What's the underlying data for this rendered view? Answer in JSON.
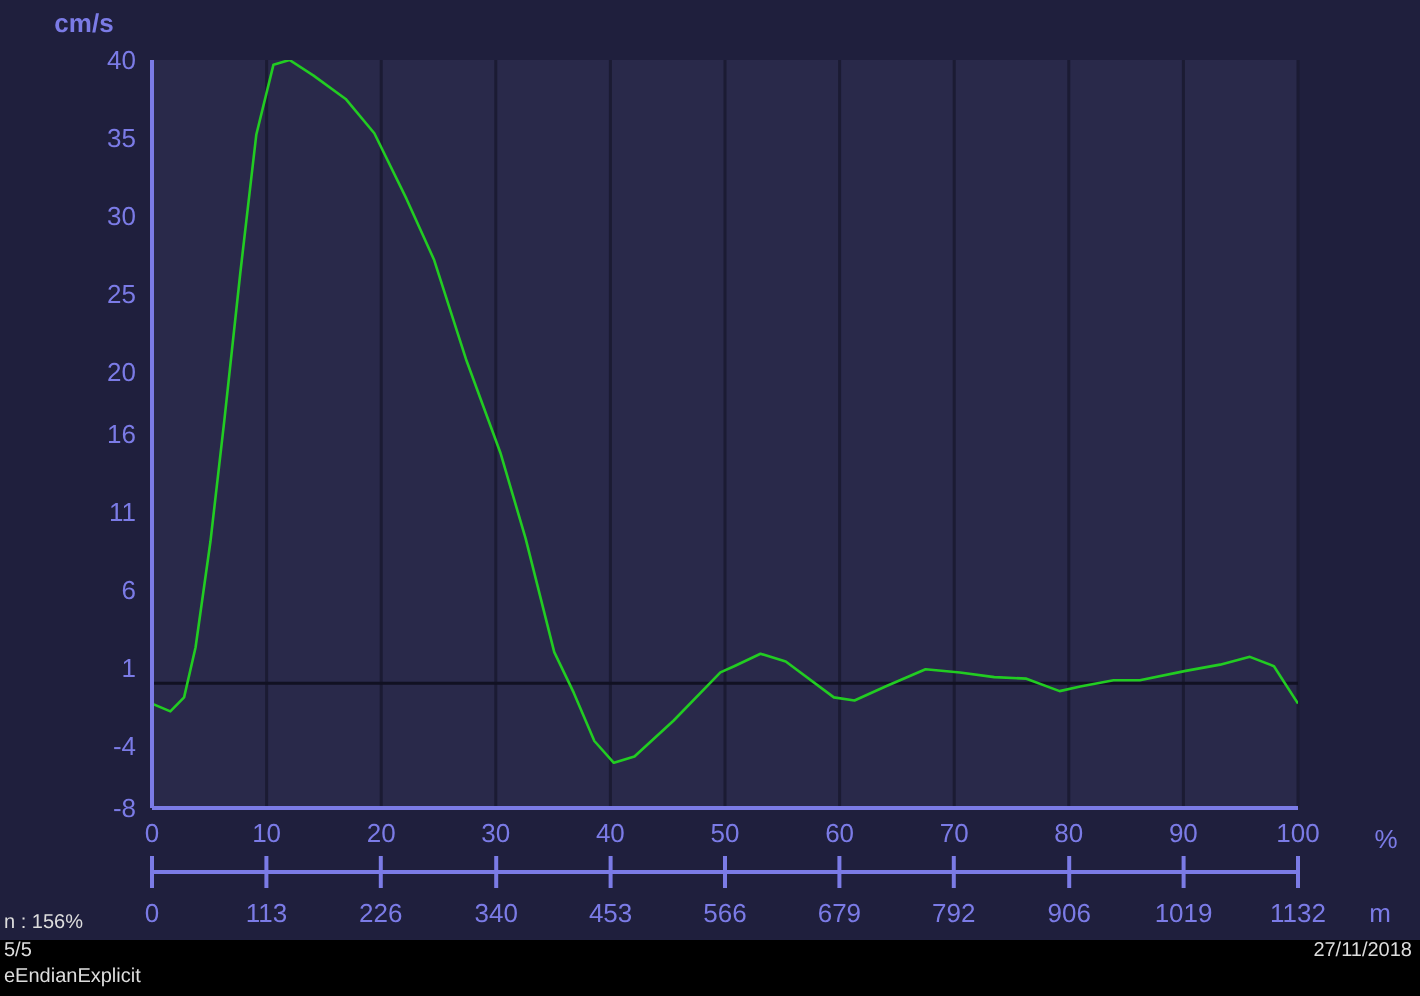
{
  "chart_data": {
    "type": "line",
    "ylabel": "cm/s",
    "xlabel": "%",
    "x2label": "m",
    "x": [
      0,
      1.6,
      2.8,
      3.8,
      5.1,
      6.3,
      7.7,
      9.1,
      10.6,
      12.0,
      14.1,
      16.9,
      19.4,
      22.2,
      24.6,
      27.4,
      30.4,
      32.6,
      35.1,
      36.8,
      38.6,
      40.3,
      42.1,
      45.5,
      49.6,
      50.8,
      53.1,
      55.3,
      59.5,
      61.3,
      64.0,
      67.5,
      70.5,
      73.5,
      76.3,
      79.2,
      81.0,
      83.9,
      86.2,
      90.2,
      93.2,
      95.8,
      97.9,
      100
    ],
    "series": [
      {
        "color": "#22cc22",
        "values": [
          -1.3,
          -1.8,
          -0.9,
          2.3,
          9.1,
          16.8,
          26.3,
          35.2,
          39.7,
          40.0,
          39.0,
          37.5,
          35.3,
          31.1,
          27.2,
          20.8,
          14.8,
          9.3,
          2.0,
          -0.6,
          -3.7,
          -5.1,
          -4.7,
          -2.4,
          0.7,
          1.1,
          1.9,
          1.4,
          -0.9,
          -1.1,
          -0.2,
          0.9,
          0.7,
          0.4,
          0.3,
          -0.5,
          -0.2,
          0.2,
          0.2,
          0.8,
          1.2,
          1.7,
          1.1,
          -1.3
        ]
      }
    ],
    "xlim": [
      0,
      100
    ],
    "xticks": [
      0,
      10,
      20,
      30,
      40,
      50,
      60,
      70,
      80,
      90,
      100
    ],
    "x2lim": [
      0,
      1132
    ],
    "x2ticks": [
      0,
      113,
      226,
      340,
      453,
      566,
      679,
      792,
      906,
      1019,
      1132
    ],
    "ylim": [
      -8,
      40
    ],
    "yticks": [
      -8,
      -4,
      1,
      6,
      11,
      16,
      20,
      25,
      30,
      35,
      40
    ],
    "ref_lines": [
      {
        "axis": "y",
        "value": 0,
        "color": "#111122"
      }
    ],
    "grid": "x",
    "legend": false,
    "marker": "none",
    "line_style": "solid",
    "annotations": [
      "n : 156%",
      "5/5",
      "eEndianExplicit",
      "27/11/2018"
    ]
  }
}
